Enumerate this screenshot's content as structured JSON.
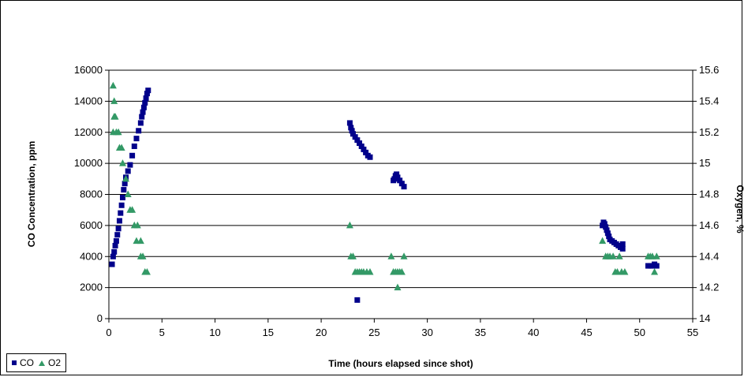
{
  "chart_data": {
    "type": "scatter",
    "xlabel": "Time (hours elapsed since shot)",
    "ylabel": "CO Concentration, ppm",
    "y2label": "Oxygen, %",
    "xlim": [
      0,
      55
    ],
    "ylim": [
      0,
      16000
    ],
    "y2lim": [
      14,
      15.6
    ],
    "xticks": [
      "0",
      "5",
      "10",
      "15",
      "20",
      "25",
      "30",
      "35",
      "40",
      "45",
      "50",
      "55"
    ],
    "yticks": [
      "0",
      "2000",
      "4000",
      "6000",
      "8000",
      "10000",
      "12000",
      "14000",
      "16000"
    ],
    "y2ticks": [
      "14",
      "14.2",
      "14.4",
      "14.6",
      "14.8",
      "15",
      "15.2",
      "15.4",
      "15.6"
    ],
    "grid": "horizontal",
    "legend_position": "bottom-left",
    "colors": {
      "CO": "#00008b",
      "O2": "#339966"
    },
    "series": [
      {
        "name": "CO",
        "axis": "left",
        "marker": "square",
        "points": [
          [
            0.3,
            3500
          ],
          [
            0.4,
            4000
          ],
          [
            0.5,
            4300
          ],
          [
            0.6,
            4700
          ],
          [
            0.7,
            5000
          ],
          [
            0.8,
            5400
          ],
          [
            0.9,
            5800
          ],
          [
            1.0,
            6300
          ],
          [
            1.1,
            6800
          ],
          [
            1.2,
            7300
          ],
          [
            1.3,
            7800
          ],
          [
            1.4,
            8300
          ],
          [
            1.5,
            8700
          ],
          [
            1.6,
            9100
          ],
          [
            1.8,
            9500
          ],
          [
            2.0,
            9900
          ],
          [
            2.2,
            10500
          ],
          [
            2.4,
            11100
          ],
          [
            2.6,
            11600
          ],
          [
            2.8,
            12100
          ],
          [
            3.0,
            12600
          ],
          [
            3.1,
            13000
          ],
          [
            3.2,
            13300
          ],
          [
            3.3,
            13600
          ],
          [
            3.4,
            13900
          ],
          [
            3.5,
            14200
          ],
          [
            3.6,
            14500
          ],
          [
            3.7,
            14700
          ],
          [
            22.7,
            12600
          ],
          [
            22.8,
            12300
          ],
          [
            22.9,
            12100
          ],
          [
            23.0,
            11900
          ],
          [
            23.2,
            11700
          ],
          [
            23.4,
            11500
          ],
          [
            23.6,
            11300
          ],
          [
            23.8,
            11100
          ],
          [
            24.0,
            10900
          ],
          [
            24.2,
            10700
          ],
          [
            24.4,
            10500
          ],
          [
            24.6,
            10400
          ],
          [
            23.4,
            1200
          ],
          [
            26.8,
            8900
          ],
          [
            26.9,
            9000
          ],
          [
            27.0,
            9200
          ],
          [
            27.1,
            9300
          ],
          [
            27.2,
            9100
          ],
          [
            27.4,
            8900
          ],
          [
            27.6,
            8700
          ],
          [
            27.8,
            8500
          ],
          [
            46.5,
            6000
          ],
          [
            46.6,
            6200
          ],
          [
            46.7,
            6100
          ],
          [
            46.8,
            5900
          ],
          [
            46.9,
            5700
          ],
          [
            47.0,
            5500
          ],
          [
            47.1,
            5300
          ],
          [
            47.2,
            5100
          ],
          [
            47.4,
            5000
          ],
          [
            47.6,
            4900
          ],
          [
            47.8,
            4800
          ],
          [
            48.0,
            4700
          ],
          [
            48.2,
            4600
          ],
          [
            48.4,
            4500
          ],
          [
            48.4,
            4800
          ],
          [
            50.8,
            3400
          ],
          [
            51.0,
            3400
          ],
          [
            51.2,
            3400
          ],
          [
            51.4,
            3500
          ],
          [
            51.6,
            3400
          ]
        ]
      },
      {
        "name": "O2",
        "axis": "right",
        "marker": "triangle",
        "points": [
          [
            0.4,
            15.5
          ],
          [
            0.5,
            15.4
          ],
          [
            0.5,
            15.3
          ],
          [
            0.6,
            15.3
          ],
          [
            0.4,
            15.2
          ],
          [
            0.7,
            15.2
          ],
          [
            0.9,
            15.2
          ],
          [
            1.0,
            15.1
          ],
          [
            1.2,
            15.1
          ],
          [
            1.3,
            15.0
          ],
          [
            1.6,
            14.9
          ],
          [
            1.8,
            14.8
          ],
          [
            2.0,
            14.7
          ],
          [
            2.2,
            14.7
          ],
          [
            2.4,
            14.6
          ],
          [
            2.7,
            14.6
          ],
          [
            2.6,
            14.5
          ],
          [
            3.0,
            14.5
          ],
          [
            3.0,
            14.4
          ],
          [
            3.2,
            14.4
          ],
          [
            3.4,
            14.3
          ],
          [
            3.6,
            14.3
          ],
          [
            22.7,
            14.6
          ],
          [
            22.8,
            14.4
          ],
          [
            23.0,
            14.4
          ],
          [
            23.2,
            14.3
          ],
          [
            23.4,
            14.3
          ],
          [
            23.6,
            14.3
          ],
          [
            23.8,
            14.3
          ],
          [
            24.0,
            14.3
          ],
          [
            24.3,
            14.3
          ],
          [
            24.6,
            14.3
          ],
          [
            26.6,
            14.4
          ],
          [
            26.8,
            14.3
          ],
          [
            27.0,
            14.3
          ],
          [
            27.2,
            14.3
          ],
          [
            27.2,
            14.2
          ],
          [
            27.4,
            14.3
          ],
          [
            27.6,
            14.3
          ],
          [
            27.8,
            14.4
          ],
          [
            46.5,
            14.5
          ],
          [
            46.8,
            14.4
          ],
          [
            47.0,
            14.4
          ],
          [
            47.2,
            14.4
          ],
          [
            47.5,
            14.4
          ],
          [
            47.7,
            14.3
          ],
          [
            47.9,
            14.3
          ],
          [
            48.1,
            14.4
          ],
          [
            48.3,
            14.3
          ],
          [
            48.6,
            14.3
          ],
          [
            50.8,
            14.4
          ],
          [
            51.0,
            14.4
          ],
          [
            51.2,
            14.4
          ],
          [
            51.4,
            14.3
          ],
          [
            51.6,
            14.4
          ]
        ]
      }
    ]
  }
}
